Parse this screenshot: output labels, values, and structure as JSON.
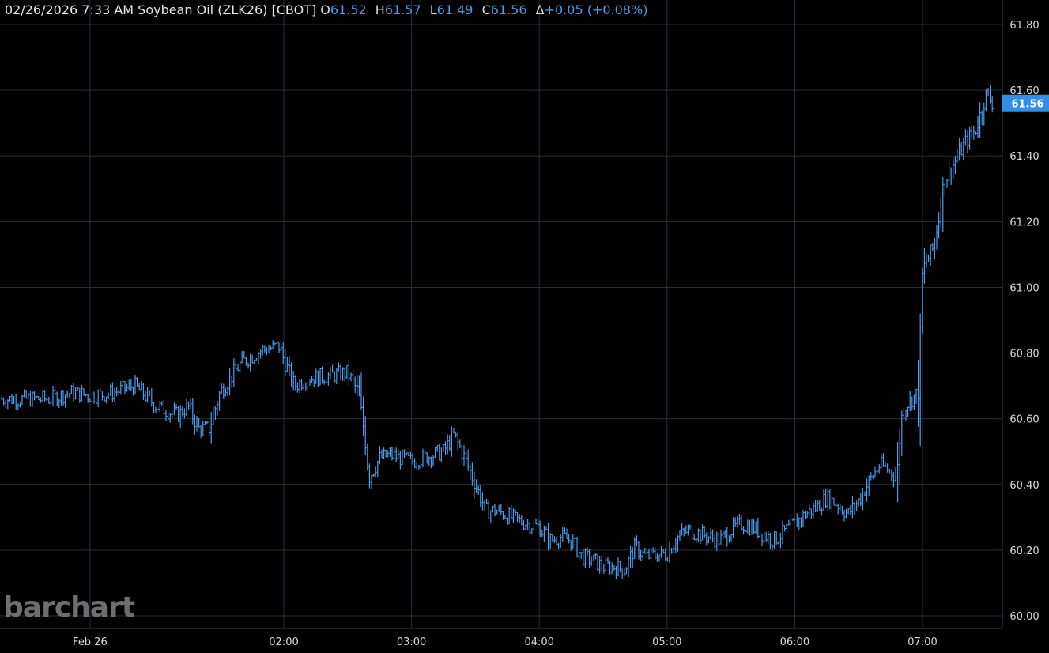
{
  "header": {
    "date": "02/26/2026",
    "time": "7:33 AM",
    "instrument": "Soybean Oil (ZLK26) [CBOT]",
    "open_label": "O",
    "open": "61.52",
    "high_label": "H",
    "high": "61.57",
    "low_label": "L",
    "low": "61.49",
    "close_label": "C",
    "close": "61.56",
    "change_label": "Δ",
    "change": "+0.05 (+0.08%)"
  },
  "watermark": "barchart",
  "colors": {
    "background": "#000000",
    "series": "#4a9be8",
    "grid": "#2a2e39",
    "axis_text": "#d8d8d8",
    "badge": "#2f8fe8"
  },
  "chart_data": {
    "type": "line",
    "title": "",
    "xlabel": "",
    "ylabel": "",
    "ylim": [
      60.0,
      61.8
    ],
    "xlim": [
      "00:29",
      "07:34"
    ],
    "x_ticks": [
      {
        "t": "00:29",
        "label": "Feb 26"
      },
      {
        "t": "02:00",
        "label": "02:00"
      },
      {
        "t": "03:00",
        "label": "03:00"
      },
      {
        "t": "04:00",
        "label": "04:00"
      },
      {
        "t": "05:00",
        "label": "05:00"
      },
      {
        "t": "06:00",
        "label": "06:00"
      },
      {
        "t": "07:00",
        "label": "07:00"
      }
    ],
    "y_ticks": [
      "60.00",
      "60.20",
      "60.40",
      "60.60",
      "60.80",
      "61.00",
      "61.20",
      "61.40",
      "61.60",
      "61.80"
    ],
    "last_price": "61.56",
    "grid": true,
    "series": [
      {
        "x": [
          "00:10",
          "00:20",
          "00:30",
          "00:40",
          "00:50",
          "01:00",
          "01:10",
          "01:15",
          "01:20",
          "01:25",
          "01:30",
          "01:40",
          "01:50",
          "01:58",
          "02:00",
          "02:05",
          "02:10",
          "02:20",
          "02:30",
          "02:35",
          "02:38",
          "02:40",
          "02:45",
          "02:50",
          "03:00",
          "03:10",
          "03:15",
          "03:20",
          "03:25",
          "03:30",
          "03:35",
          "03:40",
          "03:50",
          "04:00",
          "04:05",
          "04:10",
          "04:15",
          "04:20",
          "04:25",
          "04:30",
          "04:35",
          "04:40",
          "04:45",
          "04:50",
          "05:00",
          "05:05",
          "05:10",
          "05:15",
          "05:20",
          "05:25",
          "05:30",
          "05:35",
          "05:40",
          "05:45",
          "05:50",
          "06:00",
          "06:05",
          "06:10",
          "06:15",
          "06:20",
          "06:25",
          "06:30",
          "06:35",
          "06:40",
          "06:45",
          "06:48",
          "06:50",
          "06:52",
          "06:55",
          "06:58",
          "07:00",
          "07:02",
          "07:05",
          "07:08",
          "07:10",
          "07:15",
          "07:20",
          "07:25",
          "07:30",
          "07:33"
        ],
        "values": [
          60.66,
          60.68,
          60.67,
          60.68,
          60.7,
          60.64,
          60.61,
          60.64,
          60.57,
          60.57,
          60.68,
          60.77,
          60.81,
          60.82,
          60.78,
          60.7,
          60.72,
          60.73,
          60.74,
          60.68,
          60.55,
          60.42,
          60.48,
          60.49,
          60.47,
          60.49,
          60.5,
          60.55,
          60.48,
          60.4,
          60.32,
          60.32,
          60.29,
          60.27,
          60.23,
          60.24,
          60.23,
          60.18,
          60.17,
          60.15,
          60.15,
          60.14,
          60.21,
          60.18,
          60.19,
          60.24,
          60.26,
          60.25,
          60.24,
          60.23,
          60.26,
          60.28,
          60.27,
          60.25,
          60.23,
          60.28,
          60.31,
          60.33,
          60.36,
          60.34,
          60.31,
          60.35,
          60.41,
          60.46,
          60.44,
          60.42,
          60.6,
          60.64,
          60.66,
          60.68,
          61.05,
          61.08,
          61.12,
          61.22,
          61.32,
          61.38,
          61.44,
          61.48,
          61.59,
          61.56
        ]
      }
    ]
  }
}
